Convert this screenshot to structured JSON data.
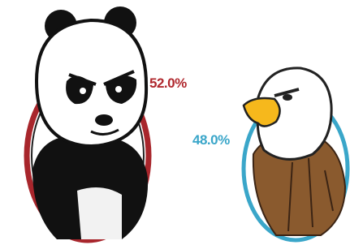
{
  "items": [
    {
      "label": "52.0%"
    },
    {
      "label": "48.0%"
    }
  ]
}
